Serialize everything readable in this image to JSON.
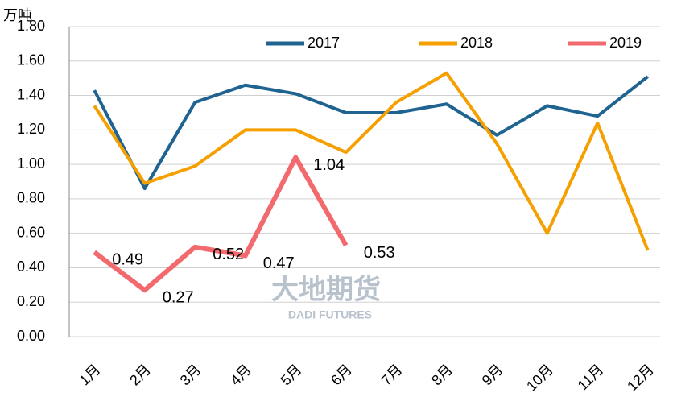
{
  "chart_data": {
    "type": "line",
    "y_axis_label": "万吨",
    "watermark": [
      "大地期货",
      "DADI FUTURES"
    ],
    "categories": [
      "1月",
      "2月",
      "3月",
      "4月",
      "5月",
      "6月",
      "7月",
      "8月",
      "9月",
      "10月",
      "11月",
      "12月"
    ],
    "series": [
      {
        "name": "2017",
        "color": "#1f6391",
        "values": [
          1.43,
          0.86,
          1.36,
          1.46,
          1.41,
          1.3,
          1.3,
          1.35,
          1.17,
          1.34,
          1.28,
          1.51
        ]
      },
      {
        "name": "2018",
        "color": "#f5a000",
        "values": [
          1.34,
          0.89,
          0.99,
          1.2,
          1.2,
          1.07,
          1.36,
          1.53,
          1.12,
          0.6,
          1.24,
          0.5
        ]
      },
      {
        "name": "2019",
        "color": "#f26a6e",
        "values": [
          0.49,
          0.27,
          0.52,
          0.47,
          1.04,
          0.53,
          null,
          null,
          null,
          null,
          null,
          null
        ],
        "data_labels": true
      }
    ],
    "ylim": [
      0,
      1.8
    ],
    "yticks": [
      {
        "value": 0,
        "label": "0.00"
      },
      {
        "value": 0.2,
        "label": "0.20"
      },
      {
        "value": 0.4,
        "label": "0.40"
      },
      {
        "value": 0.6,
        "label": "0.60"
      },
      {
        "value": 0.8,
        "label": "0.80"
      },
      {
        "value": 1.0,
        "label": "1.00"
      },
      {
        "value": 1.2,
        "label": "1.20"
      },
      {
        "value": 1.4,
        "label": "1.40"
      },
      {
        "value": 1.6,
        "label": "1.60"
      },
      {
        "value": 1.8,
        "label": "1.80"
      }
    ],
    "grid": true,
    "legend": "top"
  }
}
